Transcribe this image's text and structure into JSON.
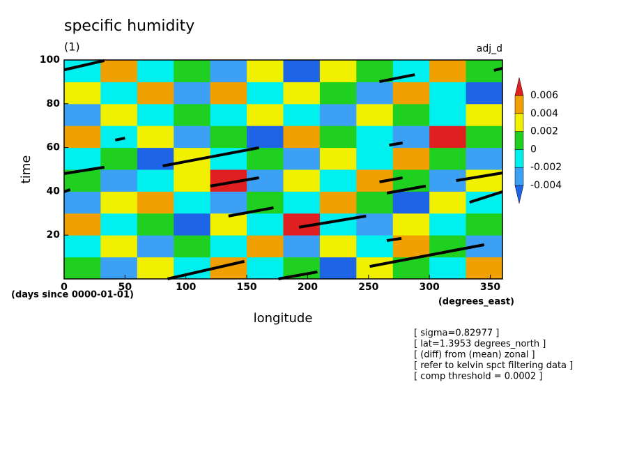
{
  "chart_data": {
    "type": "contour",
    "title": "specific humidity",
    "subtitle": "(1)",
    "label_right": "adj_d",
    "x_label": "longitude",
    "y_label": "time",
    "y_units": "(days since 0000-01-01)",
    "x_units": "(degrees_east)",
    "annotations": [
      "[ sigma=0.82977 ]",
      "[ lat=1.3953 degrees_north ]",
      "[ (diff) from (mean) zonal ]",
      "[ refer to kelvin spct filtering data ]",
      "[ comp threshold = 0.0002 ]"
    ],
    "xlim": [
      0,
      360
    ],
    "xticks": [
      0,
      50,
      100,
      150,
      200,
      250,
      300,
      350
    ],
    "ylim": [
      0,
      100
    ],
    "yticks": [
      20,
      40,
      60,
      80,
      100
    ],
    "levels": [
      -0.004,
      -0.002,
      0,
      0.002,
      0.004,
      0.006
    ],
    "colors": [
      "#1e64e6",
      "#3ca0f5",
      "#00f0f0",
      "#20d020",
      "#f0f000",
      "#f0a000",
      "#e02020"
    ],
    "z": [
      [
        0.001,
        -0.003,
        0.002,
        -0.001,
        0.004,
        -0.002,
        0.001,
        -0.005,
        0.003,
        0,
        -0.002,
        0.005
      ],
      [
        -0.002,
        0.003,
        -0.004,
        0.001,
        -0.001,
        0.005,
        -0.003,
        0.002,
        -0.001,
        0.004,
        0.001,
        -0.003
      ],
      [
        0.004,
        -0.001,
        0.001,
        -0.005,
        0.002,
        -0.002,
        0.006,
        -0.001,
        -0.004,
        0.002,
        -0.002,
        0.001
      ],
      [
        -0.003,
        0.002,
        0.005,
        -0.001,
        -0.003,
        0.001,
        -0.002,
        0.004,
        0.001,
        -0.005,
        0.003,
        -0.001
      ],
      [
        0.001,
        -0.004,
        -0.001,
        0.003,
        0.007,
        -0.003,
        0.002,
        -0.001,
        0.005,
        0.001,
        -0.003,
        0.002
      ],
      [
        -0.001,
        0.001,
        -0.005,
        0.002,
        -0.002,
        0.001,
        -0.004,
        0.003,
        -0.002,
        0.004,
        0,
        -0.004
      ],
      [
        0.005,
        -0.002,
        0.002,
        -0.003,
        0.001,
        -0.005,
        0.004,
        0.001,
        -0.001,
        -0.003,
        0.006,
        0.001
      ],
      [
        -0.004,
        0.003,
        -0.001,
        0.001,
        -0.002,
        0.003,
        -0.001,
        -0.004,
        0.002,
        0.001,
        -0.002,
        0.003
      ],
      [
        0.002,
        -0.001,
        0.004,
        -0.004,
        0.005,
        -0.001,
        0.002,
        0.001,
        -0.003,
        0.005,
        -0.001,
        -0.005
      ],
      [
        -0.002,
        0.005,
        -0.002,
        0.001,
        -0.003,
        0.002,
        -0.005,
        0.003,
        0.001,
        -0.002,
        0.004,
        0
      ]
    ],
    "track_color": "#000000",
    "tracks": [
      {
        "x": [
          0,
          33
        ],
        "y": [
          95.5,
          99.7
        ]
      },
      {
        "x": [
          259,
          288
        ],
        "y": [
          90.1,
          93.3
        ]
      },
      {
        "x": [
          353,
          360
        ],
        "y": [
          95.2,
          96.2
        ]
      },
      {
        "x": [
          42,
          50
        ],
        "y": [
          63.4,
          64.3
        ]
      },
      {
        "x": [
          0,
          33
        ],
        "y": [
          48.1,
          51
        ]
      },
      {
        "x": [
          81,
          160
        ],
        "y": [
          51.6,
          59.9
        ]
      },
      {
        "x": [
          267,
          278
        ],
        "y": [
          61.1,
          62.1
        ]
      },
      {
        "x": [
          0,
          5
        ],
        "y": [
          39.8,
          40.8
        ]
      },
      {
        "x": [
          120,
          160
        ],
        "y": [
          42.4,
          46.2
        ]
      },
      {
        "x": [
          259,
          278
        ],
        "y": [
          44.3,
          46.2
        ]
      },
      {
        "x": [
          265,
          297
        ],
        "y": [
          39.2,
          42.4
        ]
      },
      {
        "x": [
          322,
          360
        ],
        "y": [
          44.9,
          48.4
        ]
      },
      {
        "x": [
          333,
          360
        ],
        "y": [
          35,
          39.8
        ]
      },
      {
        "x": [
          135,
          172
        ],
        "y": [
          28.7,
          32.5
        ]
      },
      {
        "x": [
          193,
          248
        ],
        "y": [
          23.6,
          28.7
        ]
      },
      {
        "x": [
          265,
          277
        ],
        "y": [
          17.5,
          18.5
        ]
      },
      {
        "x": [
          85,
          148
        ],
        "y": [
          0,
          8
        ]
      },
      {
        "x": [
          176,
          208
        ],
        "y": [
          0,
          3.2
        ]
      },
      {
        "x": [
          251,
          345
        ],
        "y": [
          5.7,
          15.6
        ]
      }
    ]
  }
}
